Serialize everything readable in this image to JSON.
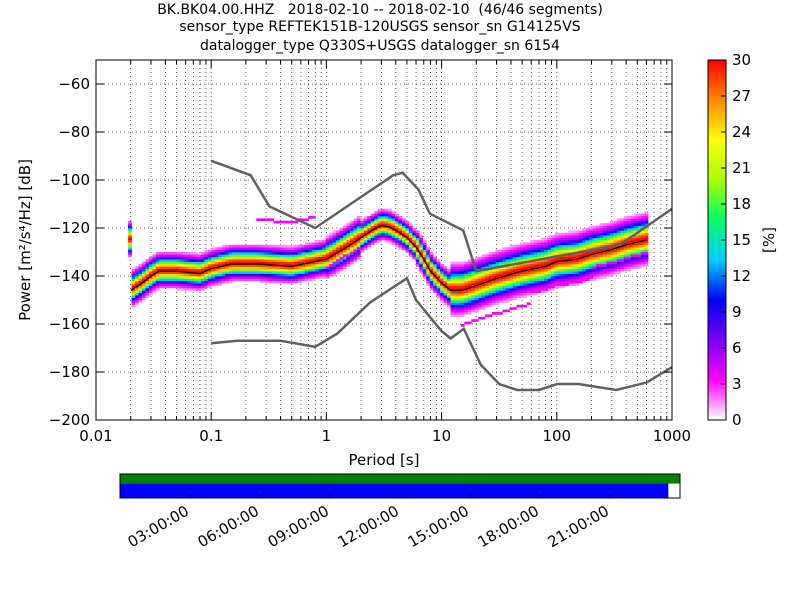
{
  "header": {
    "title_lines": [
      "BK.BK04.00.HHZ   2018-02-10 -- 2018-02-10  (46/46 segments)",
      "sensor_type REFTEK151B-120USGS sensor_sn G14125VS",
      "datalogger_type Q330S+USGS datalogger_sn 6154"
    ]
  },
  "chart_data": [
    {
      "type": "heatmap",
      "title": "BK.BK04.00.HHZ   2018-02-10 -- 2018-02-10  (46/46 segments)",
      "xlabel": "Period [s]",
      "ylabel": "Power [m²/s⁴/Hz] [dB]",
      "x_scale": "log",
      "xlim": [
        0.01,
        1000
      ],
      "ylim": [
        -200,
        -50
      ],
      "x_ticks": [
        "0.01",
        "0.1",
        "1",
        "10",
        "100",
        "1000"
      ],
      "x_tick_values": [
        0.01,
        0.1,
        1,
        10,
        100,
        1000
      ],
      "y_ticks": [
        "−200",
        "−180",
        "−160",
        "−140",
        "−120",
        "−100",
        "−80",
        "−60"
      ],
      "y_tick_values": [
        -200,
        -180,
        -160,
        -140,
        -120,
        -100,
        -80,
        -60
      ],
      "grid": "dotted",
      "colorbar": {
        "label": "[%]",
        "range": [
          0,
          30
        ],
        "ticks": [
          "0",
          "3",
          "6",
          "9",
          "12",
          "15",
          "18",
          "21",
          "24",
          "27",
          "30"
        ],
        "tick_values": [
          0,
          3,
          6,
          9,
          12,
          15,
          18,
          21,
          24,
          27,
          30
        ]
      },
      "noise_models": {
        "high": [
          [
            0.1,
            -92
          ],
          [
            0.22,
            -98
          ],
          [
            0.32,
            -111
          ],
          [
            0.8,
            -120
          ],
          [
            3.8,
            -98
          ],
          [
            4.6,
            -97
          ],
          [
            6.3,
            -104
          ],
          [
            7.9,
            -114
          ],
          [
            15.4,
            -121
          ],
          [
            20,
            -138
          ],
          [
            354,
            -127
          ],
          [
            1000,
            -112
          ]
        ],
        "low": [
          [
            0.1,
            -168
          ],
          [
            0.17,
            -167
          ],
          [
            0.4,
            -167
          ],
          [
            0.8,
            -169.5
          ],
          [
            1.24,
            -164
          ],
          [
            2.4,
            -151
          ],
          [
            4.3,
            -143
          ],
          [
            5,
            -141
          ],
          [
            6,
            -150
          ],
          [
            10,
            -163
          ],
          [
            12,
            -166
          ],
          [
            15.6,
            -162
          ],
          [
            21.9,
            -177
          ],
          [
            31.6,
            -185
          ],
          [
            45,
            -187.5
          ],
          [
            70,
            -187.5
          ],
          [
            101,
            -185
          ],
          [
            154,
            -185
          ],
          [
            328,
            -187.5
          ],
          [
            600,
            -184.4
          ],
          [
            1000,
            -178
          ]
        ]
      },
      "median_curve": [
        [
          0.02,
          -146
        ],
        [
          0.025,
          -143
        ],
        [
          0.03,
          -140
        ],
        [
          0.035,
          -138
        ],
        [
          0.05,
          -138
        ],
        [
          0.08,
          -139
        ],
        [
          0.1,
          -137
        ],
        [
          0.15,
          -135
        ],
        [
          0.25,
          -135
        ],
        [
          0.5,
          -136
        ],
        [
          1,
          -133
        ],
        [
          1.5,
          -128
        ],
        [
          2,
          -124
        ],
        [
          2.5,
          -121
        ],
        [
          3,
          -119
        ],
        [
          3.5,
          -119.5
        ],
        [
          4,
          -121
        ],
        [
          5,
          -124
        ],
        [
          6,
          -128
        ],
        [
          7,
          -133
        ],
        [
          8,
          -138
        ],
        [
          10,
          -143
        ],
        [
          12,
          -146
        ],
        [
          15,
          -146
        ],
        [
          20,
          -144
        ],
        [
          30,
          -141
        ],
        [
          50,
          -138
        ],
        [
          80,
          -136
        ],
        [
          100,
          -134
        ],
        [
          150,
          -133
        ],
        [
          200,
          -131
        ],
        [
          300,
          -129
        ],
        [
          400,
          -127
        ],
        [
          600,
          -125
        ]
      ]
    },
    {
      "type": "bar",
      "title": "",
      "x_ticks": [
        "03:00:00",
        "06:00:00",
        "09:00:00",
        "12:00:00",
        "15:00:00",
        "18:00:00",
        "21:00:00"
      ],
      "x_tick_hours": [
        3,
        6,
        9,
        12,
        15,
        18,
        21
      ],
      "xlim_hours": [
        0,
        24
      ],
      "top_bar": {
        "start_hour": 0,
        "end_hour": 24,
        "color": "#008000"
      },
      "bottom_bar": {
        "start_hour": 0,
        "end_hour": 23.5,
        "color": "#0000ff"
      }
    }
  ],
  "colors": {
    "noise_model": "#606060",
    "median": "#000000",
    "colormap_stops": [
      "#ffffff",
      "#ff00ff",
      "#7700ff",
      "#0000ff",
      "#00ccff",
      "#00ff66",
      "#aaff00",
      "#ffff00",
      "#ff8800",
      "#ff0000"
    ]
  }
}
